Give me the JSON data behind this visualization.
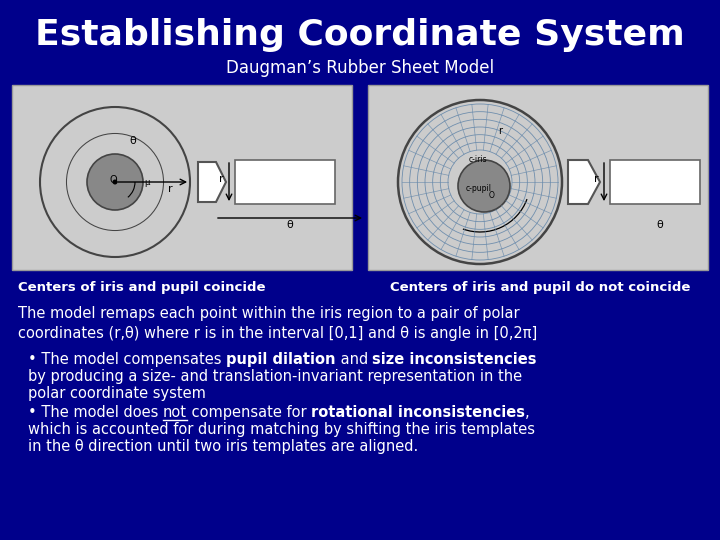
{
  "title": "Establishing Coordinate System",
  "subtitle": "Daugman’s Rubber Sheet Model",
  "bg_color": "#00008B",
  "title_color": "#FFFFFF",
  "subtitle_color": "#FFFFFF",
  "panel_bg": "#CCCCCC",
  "text_color": "#FFFFFF",
  "label_left": "Centers of iris and pupil coincide",
  "label_right": "Centers of iris and pupil do not coincide"
}
